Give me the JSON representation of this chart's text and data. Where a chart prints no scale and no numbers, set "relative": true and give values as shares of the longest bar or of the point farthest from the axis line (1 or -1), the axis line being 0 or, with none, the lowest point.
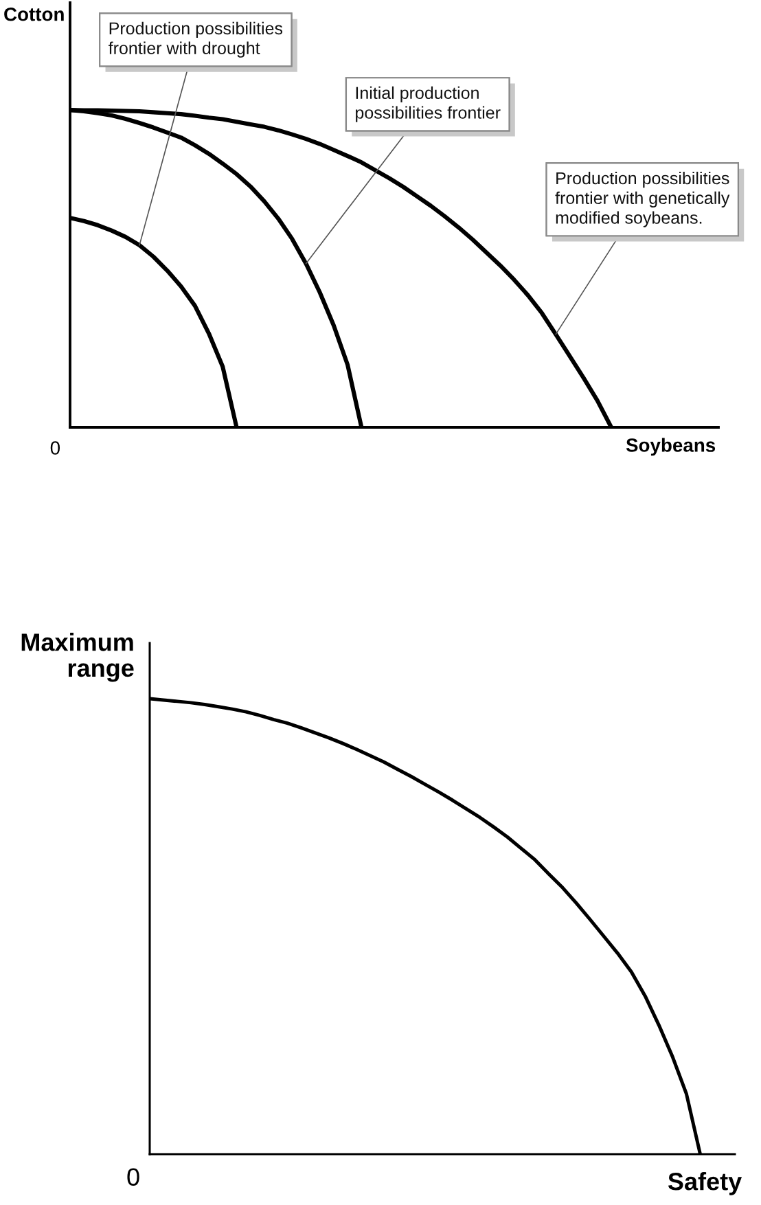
{
  "chart_data": [
    {
      "type": "line",
      "relative": true,
      "xlabel": "Soybeans",
      "ylabel": "Cotton",
      "annotations": [
        "0"
      ],
      "categories": [
        null,
        null,
        null,
        null,
        null,
        null,
        null,
        null,
        null,
        null,
        null,
        null,
        null,
        null,
        null,
        null,
        null,
        null,
        null,
        null,
        null,
        null,
        null,
        null,
        null,
        null,
        null,
        null,
        null,
        null,
        null,
        null,
        null,
        null,
        null,
        null,
        null,
        null,
        null,
        null
      ],
      "series": [
        {
          "name": "Production possibilities\nfrontier with drought",
          "color": "#000000",
          "values": [
            0.66,
            0.65,
            0.637,
            0.62,
            0.6,
            0.574,
            0.538,
            0.494,
            0.444,
            0.383,
            0.296,
            0.191,
            0,
            null,
            null,
            null,
            null,
            null,
            null,
            null,
            null,
            null,
            null,
            null,
            null,
            null,
            null,
            null,
            null,
            null,
            null,
            null,
            null,
            null,
            null,
            null,
            null,
            null,
            null,
            null
          ]
        },
        {
          "name": "Initial production\npossibilities frontier",
          "color": "#000000",
          "values": [
            1,
            0.996,
            0.99,
            0.983,
            0.972,
            0.959,
            0.945,
            0.929,
            0.913,
            0.889,
            0.862,
            0.831,
            0.798,
            0.759,
            0.712,
            0.658,
            0.594,
            0.516,
            0.425,
            0.321,
            0.197,
            0,
            null,
            null,
            null,
            null,
            null,
            null,
            null,
            null,
            null,
            null,
            null,
            null,
            null,
            null,
            null,
            null,
            null,
            null
          ]
        },
        {
          "name": "Production possibilities\nfrontier with genetically\nmodified soybeans.",
          "color": "#000000",
          "values": [
            1,
            0.999,
            0.999,
            0.998,
            0.997,
            0.996,
            0.993,
            0.99,
            0.987,
            0.982,
            0.976,
            0.971,
            0.963,
            0.955,
            0.947,
            0.936,
            0.923,
            0.909,
            0.893,
            0.874,
            0.855,
            0.835,
            0.81,
            0.785,
            0.758,
            0.728,
            0.698,
            0.665,
            0.63,
            0.592,
            0.551,
            0.51,
            0.465,
            0.416,
            0.36,
            0.293,
            0.225,
            0.156,
            0.084,
            0
          ]
        }
      ]
    },
    {
      "type": "line",
      "relative": true,
      "xlabel": "Safety",
      "ylabel": "Maximum\nrange",
      "annotations": [
        "0"
      ],
      "categories": [
        null,
        null,
        null,
        null,
        null,
        null,
        null,
        null,
        null,
        null,
        null,
        null,
        null,
        null,
        null,
        null,
        null,
        null,
        null,
        null,
        null,
        null,
        null,
        null,
        null,
        null,
        null,
        null,
        null,
        null,
        null,
        null,
        null,
        null,
        null,
        null,
        null,
        null,
        null,
        null,
        null
      ],
      "series": [
        {
          "color": "#000000",
          "values": [
            1,
            0.997,
            0.994,
            0.991,
            0.987,
            0.982,
            0.977,
            0.971,
            0.963,
            0.954,
            0.946,
            0.936,
            0.925,
            0.914,
            0.902,
            0.889,
            0.875,
            0.861,
            0.845,
            0.829,
            0.812,
            0.795,
            0.777,
            0.758,
            0.739,
            0.718,
            0.696,
            0.671,
            0.646,
            0.615,
            0.585,
            0.551,
            0.515,
            0.478,
            0.441,
            0.4,
            0.347,
            0.283,
            0.213,
            0.132,
            0
          ]
        }
      ]
    }
  ]
}
